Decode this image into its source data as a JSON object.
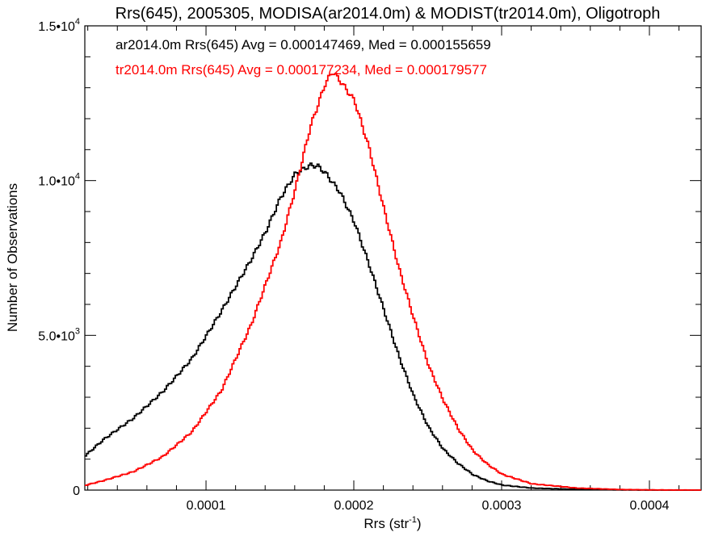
{
  "chart_data": {
    "type": "line",
    "title": "Rrs(645), 2005305, MODISA(ar2014.0m) & MODIST(tr2014.0m), Oligotroph",
    "xlabel": "Rrs (str",
    "xlabel_sup": "-1",
    "xlabel_close": ")",
    "ylabel": "Number of Observations",
    "xlim": [
      1.8e-05,
      0.000435
    ],
    "ylim": [
      0,
      15000
    ],
    "x_ticks": [
      {
        "value": 0.0001,
        "label": "0.0001"
      },
      {
        "value": 0.0002,
        "label": "0.0002"
      },
      {
        "value": 0.0003,
        "label": "0.0003"
      },
      {
        "value": 0.0004,
        "label": "0.0004"
      }
    ],
    "y_ticks": [
      {
        "value": 0,
        "mant": "0",
        "exp": ""
      },
      {
        "value": 5000,
        "mant": "5.0•10",
        "exp": "3"
      },
      {
        "value": 10000,
        "mant": "1.0•10",
        "exp": "4"
      },
      {
        "value": 15000,
        "mant": "1.5•10",
        "exp": "4"
      }
    ],
    "grid": false,
    "legend_position": "top-left",
    "series": [
      {
        "legend": "ar2014.0m Rrs(645) Avg = 0.000147469, Med = 0.000155659",
        "color": "#000000",
        "x": [
          1.8e-05,
          3e-05,
          5e-05,
          7e-05,
          9e-05,
          0.00011,
          0.00013,
          0.00014,
          0.00015,
          0.00016,
          0.00017,
          0.000175,
          0.00018,
          0.00019,
          0.0002,
          0.00021,
          0.00022,
          0.00023,
          0.00024,
          0.00025,
          0.00026,
          0.00027,
          0.00028,
          0.00029,
          0.0003,
          0.00032,
          0.00035,
          0.00038,
          0.000435
        ],
        "y": [
          1100,
          1600,
          2300,
          3200,
          4300,
          5800,
          7400,
          8300,
          9400,
          10200,
          10500,
          10500,
          10300,
          9700,
          8700,
          7300,
          5800,
          4300,
          3000,
          2000,
          1300,
          850,
          500,
          300,
          170,
          70,
          20,
          5,
          0
        ]
      },
      {
        "legend": "tr2014.0m Rrs(645) Avg = 0.000177234, Med = 0.000179577",
        "color": "#ff0000",
        "x": [
          1.8e-05,
          3e-05,
          5e-05,
          7e-05,
          9e-05,
          0.00011,
          0.00013,
          0.00015,
          0.00016,
          0.00017,
          0.00018,
          0.000185,
          0.00019,
          0.0002,
          0.00021,
          0.00022,
          0.00023,
          0.00024,
          0.00025,
          0.00026,
          0.00027,
          0.00028,
          0.00029,
          0.0003,
          0.00032,
          0.00035,
          0.00038,
          0.0004,
          0.000435
        ],
        "y": [
          150,
          300,
          600,
          1100,
          1900,
          3200,
          5300,
          8000,
          9800,
          11800,
          13200,
          13600,
          13300,
          12600,
          11000,
          9000,
          7100,
          5500,
          4000,
          2900,
          2000,
          1300,
          850,
          520,
          200,
          60,
          20,
          10,
          0
        ]
      }
    ]
  }
}
